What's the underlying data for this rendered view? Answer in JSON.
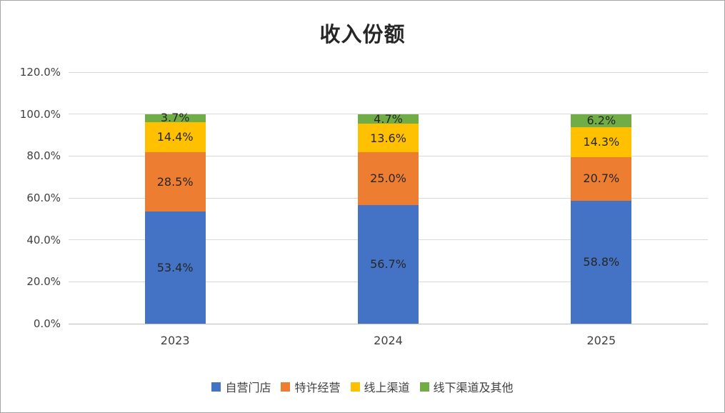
{
  "chart_data": {
    "type": "bar",
    "stacked": true,
    "title": "收入份额",
    "categories": [
      "2023",
      "2024",
      "2025"
    ],
    "series": [
      {
        "name": "自营门店",
        "color": "#4472C4",
        "values": [
          53.4,
          56.7,
          58.8
        ],
        "labels": [
          "53.4%",
          "56.7%",
          "58.8%"
        ]
      },
      {
        "name": "特许经营",
        "color": "#ED7D31",
        "values": [
          28.5,
          25.0,
          20.7
        ],
        "labels": [
          "28.5%",
          "25.0%",
          "20.7%"
        ]
      },
      {
        "name": "线上渠道",
        "color": "#FFC000",
        "values": [
          14.4,
          13.6,
          14.3
        ],
        "labels": [
          "14.4%",
          "13.6%",
          "14.3%"
        ]
      },
      {
        "name": "线下渠道及其他",
        "color": "#70AD47",
        "values": [
          3.7,
          4.7,
          6.2
        ],
        "labels": [
          "3.7%",
          "4.7%",
          "6.2%"
        ]
      }
    ],
    "y_axis": {
      "min": 0,
      "max": 120,
      "step": 20,
      "ticks": [
        "0.0%",
        "20.0%",
        "40.0%",
        "60.0%",
        "80.0%",
        "100.0%",
        "120.0%"
      ]
    },
    "xlabel": "",
    "ylabel": "",
    "grid": true,
    "legend_position": "bottom",
    "colors": {
      "gridline": "#d9d9d9",
      "axis_line": "#bfbfbf",
      "label_text": "#262626",
      "tick_text": "#404040"
    }
  }
}
